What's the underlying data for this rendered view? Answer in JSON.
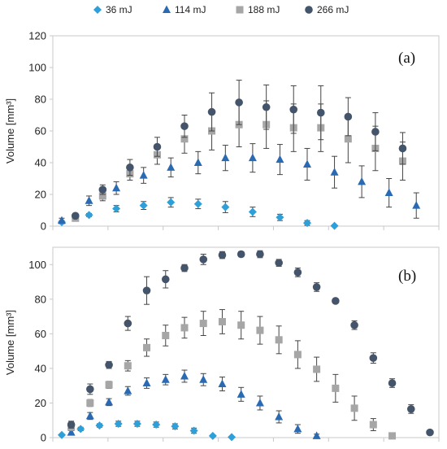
{
  "legend": [
    "36 mJ",
    "114 mJ",
    "188 mJ",
    "266 mJ"
  ],
  "colors": {
    "36 mJ": "#2e9fd8",
    "114 mJ": "#2a6ab3",
    "188 mJ": "#a6a6a6",
    "266 mJ": "#44546a",
    "axis": "#c8c8c8",
    "error": "#444444"
  },
  "markers": {
    "36 mJ": "diamond",
    "114 mJ": "triangle",
    "188 mJ": "square",
    "266 mJ": "circle"
  },
  "chart_data": [
    {
      "type": "scatter",
      "panel_label": "(a)",
      "ylabel": "Volume [mm³]",
      "ylim": [
        0,
        120
      ],
      "yticks": [
        0,
        20,
        40,
        60,
        80,
        100,
        120
      ],
      "xlim": [
        0,
        28
      ],
      "grid": false,
      "legend_position": "top",
      "series": [
        {
          "name": "36 mJ",
          "x": [
            1,
            3,
            5,
            7,
            9,
            11,
            13,
            15,
            17,
            19,
            21
          ],
          "values": [
            2.5,
            7,
            11,
            13,
            15,
            14,
            12,
            9,
            5.5,
            2,
            0.2
          ],
          "errors": [
            1,
            1,
            2,
            2.5,
            3,
            3,
            3.5,
            3,
            2,
            1.5,
            0
          ]
        },
        {
          "name": "114 mJ",
          "x": [
            1,
            3,
            5,
            7,
            9,
            11,
            13,
            15,
            17,
            19,
            21,
            23,
            25,
            27
          ],
          "values": [
            3.5,
            16,
            24,
            32,
            37,
            40,
            43,
            43,
            42,
            39,
            34,
            28,
            21,
            13
          ],
          "errors": [
            1.5,
            3,
            4,
            5,
            6,
            7,
            8,
            9,
            9.5,
            10,
            10,
            10,
            9,
            8
          ]
        },
        {
          "name": "188 mJ",
          "x": [
            2,
            4,
            6,
            8,
            10,
            12,
            14,
            16,
            18,
            20,
            22,
            24,
            26
          ],
          "values": [
            5,
            19,
            33,
            45,
            55,
            60,
            64,
            64,
            62,
            62,
            55,
            49,
            41
          ],
          "errors": [
            1.5,
            3,
            4,
            6,
            9,
            12,
            14,
            15,
            15,
            15,
            15,
            14,
            12
          ]
        },
        {
          "name": "266 mJ",
          "x": [
            2,
            4,
            6,
            8,
            10,
            12,
            14,
            16,
            18,
            20,
            22,
            24,
            26
          ],
          "values": [
            6.5,
            23,
            37,
            50,
            63,
            72,
            78,
            75,
            73.5,
            71.5,
            69,
            59.5,
            49
          ],
          "errors": [
            1.5,
            3,
            5,
            6,
            7,
            12,
            14,
            14,
            15,
            17,
            12,
            12,
            10
          ]
        }
      ],
      "series_tail": [
        {
          "name": "36 mJ",
          "x": [],
          "values": [],
          "errors": []
        }
      ]
    },
    {
      "type": "scatter",
      "panel_label": "(b)",
      "ylabel": "Volume [mm³]",
      "ylim": [
        0,
        110
      ],
      "yticks": [
        0,
        20,
        40,
        60,
        80,
        100
      ],
      "xlim": [
        0,
        34
      ],
      "grid": false,
      "legend_position": "top",
      "series": [
        {
          "name": "36 mJ",
          "x": [
            1,
            3,
            5,
            7,
            9,
            11,
            13,
            15,
            17,
            19
          ],
          "values": [
            1.5,
            5,
            7,
            8,
            8,
            7.5,
            6.5,
            4,
            1,
            0.3
          ],
          "errors": [
            0.5,
            1,
            1,
            1.5,
            1.5,
            1.5,
            1.5,
            1.5,
            0.5,
            0
          ]
        },
        {
          "name": "114 mJ",
          "x": [
            2,
            4,
            6,
            8,
            10,
            12,
            14,
            16,
            18,
            20,
            22,
            24,
            26,
            28
          ],
          "values": [
            3,
            12.5,
            20.5,
            27,
            31.5,
            33.5,
            35.5,
            33.5,
            31,
            25,
            20,
            12,
            5,
            1
          ],
          "errors": [
            1,
            2,
            2,
            2.5,
            3,
            3,
            3.5,
            3.5,
            4,
            4,
            4,
            3.5,
            2.5,
            1
          ]
        },
        {
          "name": "188 mJ",
          "x": [
            2,
            4,
            6,
            8,
            10,
            12,
            14,
            16,
            18,
            20,
            22,
            24,
            26,
            28,
            30,
            32
          ],
          "values": [
            6,
            20,
            30.5,
            41.5,
            52,
            59,
            63.5,
            66,
            67,
            65,
            62,
            56.5,
            48,
            39.5,
            28.5,
            17
          ],
          "errors": [
            1.5,
            2,
            2,
            3,
            5,
            6,
            6,
            7,
            7,
            8,
            8,
            8,
            8,
            7,
            8,
            7
          ]
        },
        {
          "name": "266 mJ",
          "x": [
            2,
            4,
            6,
            8,
            10,
            12,
            14,
            16,
            18,
            20,
            22,
            24,
            26,
            28,
            30,
            32,
            34
          ],
          "values": [
            7.5,
            28,
            42,
            66,
            85,
            91.5,
            98,
            103,
            105.5,
            106,
            106,
            101,
            95.5,
            87,
            79,
            65,
            46
          ],
          "errors": [
            2,
            3,
            2,
            4,
            8,
            5,
            2,
            3,
            2,
            1.5,
            2,
            2,
            2.5,
            2.5,
            1,
            2.5,
            3
          ]
        }
      ],
      "series_tail": [
        {
          "name": "188 mJ",
          "x": [
            34,
            36
          ],
          "values": [
            7.5,
            1
          ],
          "errors": [
            3.5,
            0.5
          ]
        },
        {
          "name": "266 mJ",
          "x": [
            36,
            38,
            40
          ],
          "values": [
            31.5,
            16.5,
            3
          ],
          "errors": [
            2.5,
            2.5,
            0.5
          ]
        }
      ]
    }
  ]
}
